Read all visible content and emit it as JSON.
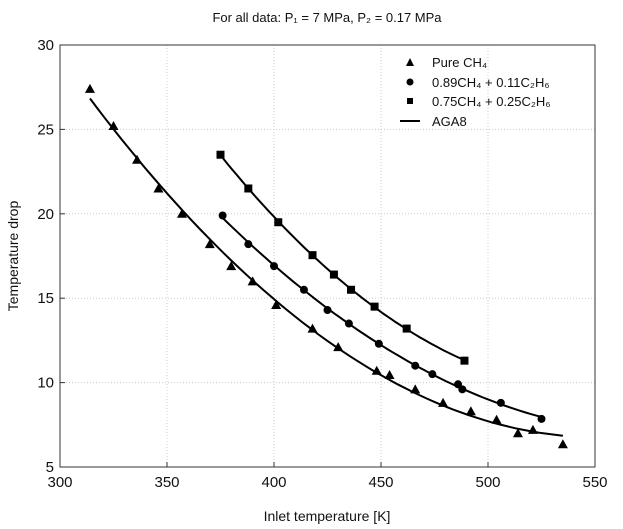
{
  "chart_data": {
    "type": "scatter",
    "title": "For all data: P₁ = 7 MPa, P₂ = 0.17 MPa",
    "xlabel": "Inlet temperature [K]",
    "ylabel": "Temperature drop",
    "xlim": [
      300,
      550
    ],
    "ylim": [
      5,
      30
    ],
    "xticks": [
      300,
      350,
      400,
      450,
      500,
      550
    ],
    "yticks": [
      5,
      10,
      15,
      20,
      25,
      30
    ],
    "grid": true,
    "legend_placement": "top-right",
    "series": [
      {
        "name": "Pure CH₄",
        "marker": "triangle",
        "x": [
          314,
          325,
          336,
          346,
          357,
          370,
          380,
          390,
          401,
          418,
          430,
          448,
          454,
          466,
          479,
          492,
          504,
          514,
          521,
          535
        ],
        "y": [
          27.4,
          25.2,
          23.2,
          21.5,
          20.0,
          18.2,
          16.9,
          16.0,
          14.6,
          13.2,
          12.1,
          10.7,
          10.45,
          9.6,
          8.8,
          8.3,
          7.8,
          7.0,
          7.2,
          6.35
        ]
      },
      {
        "name": "0.89CH₄ + 0.11C₂H₆",
        "marker": "circle",
        "x": [
          376,
          388,
          400,
          414,
          425,
          435,
          449,
          466,
          474,
          486,
          488,
          506,
          525
        ],
        "y": [
          19.9,
          18.2,
          16.9,
          15.5,
          14.3,
          13.5,
          12.3,
          11.0,
          10.5,
          9.9,
          9.6,
          8.8,
          7.85
        ]
      },
      {
        "name": "0.75CH₄ + 0.25C₂H₆",
        "marker": "square",
        "x": [
          375,
          388,
          402,
          418,
          428,
          436,
          447,
          462,
          489
        ],
        "y": [
          23.5,
          21.5,
          19.5,
          17.55,
          16.4,
          15.5,
          14.5,
          13.2,
          11.3
        ]
      }
    ],
    "line_series": {
      "name": "AGA8",
      "style": "solid"
    }
  }
}
